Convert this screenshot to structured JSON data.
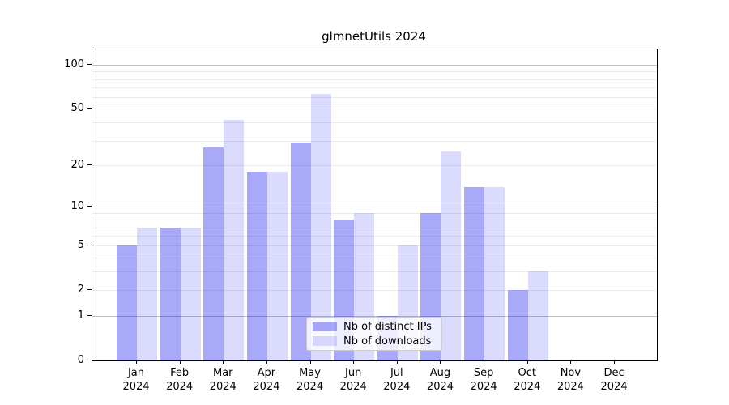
{
  "title": "glmnetUtils 2024",
  "chart_data": {
    "type": "bar",
    "title": "glmnetUtils 2024",
    "categories": [
      "Jan",
      "Feb",
      "Mar",
      "Apr",
      "May",
      "Jun",
      "Jul",
      "Aug",
      "Sep",
      "Oct",
      "Nov",
      "Dec"
    ],
    "year_label": "2024",
    "series": [
      {
        "name": "Nb of distinct IPs",
        "color": "rgba(10,10,240,0.35)",
        "values": [
          5,
          7,
          27,
          18,
          29,
          8,
          1,
          9,
          14,
          2,
          0,
          0
        ]
      },
      {
        "name": "Nb of downloads",
        "color": "rgba(10,10,240,0.145)",
        "values": [
          7,
          7,
          42,
          18,
          63,
          9,
          5,
          25,
          14,
          3,
          0,
          0
        ]
      }
    ],
    "y_scale": "log10(1+x)",
    "ylim": [
      0,
      128
    ],
    "y_tick_values": [
      0,
      1,
      2,
      5,
      10,
      20,
      50,
      100
    ],
    "minor_grid_values": [
      2,
      3,
      4,
      5,
      6,
      7,
      8,
      9,
      20,
      30,
      40,
      50,
      60,
      70,
      80,
      90
    ],
    "major_grid_values": [
      1,
      10,
      100
    ],
    "grid": true,
    "legend_position": "inside-bottom-center",
    "colors": {
      "minor_grid": "#ebebeb",
      "major_grid": "#c0c0c0",
      "axis": "#000000",
      "legend_border": "#cccccc",
      "legend_bg": "rgba(255,255,255,0.8)",
      "title_text": "#000000",
      "tick_text": "#000000"
    }
  }
}
